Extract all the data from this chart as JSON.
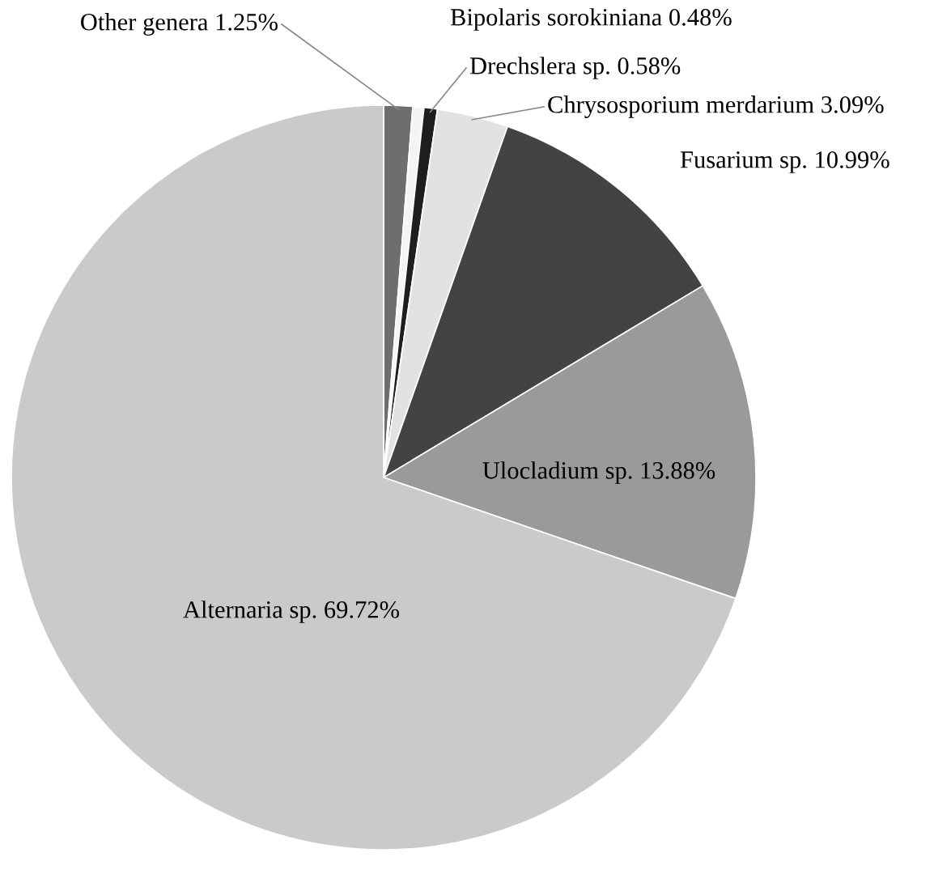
{
  "chart_data": {
    "type": "pie",
    "categories": [
      "Other genera",
      "Bipolaris sorokiniana",
      "Drechslera sp.",
      "Chrysosporium merdarium",
      "Fusarium sp.",
      "Ulocladium sp.",
      "Alternaria sp."
    ],
    "values": [
      1.25,
      0.48,
      0.58,
      3.09,
      10.99,
      13.88,
      69.72
    ],
    "value_labels": [
      "1.25%",
      "0.48%",
      "0.58%",
      "3.09%",
      "10.99%",
      "13.88%",
      "69.72%"
    ],
    "colors": [
      "#6e6e6e",
      "#f4f4f4",
      "#1e1e1e",
      "#e2e2e2",
      "#434343",
      "#9a9a9a",
      "#cacaca"
    ],
    "legend": false
  }
}
